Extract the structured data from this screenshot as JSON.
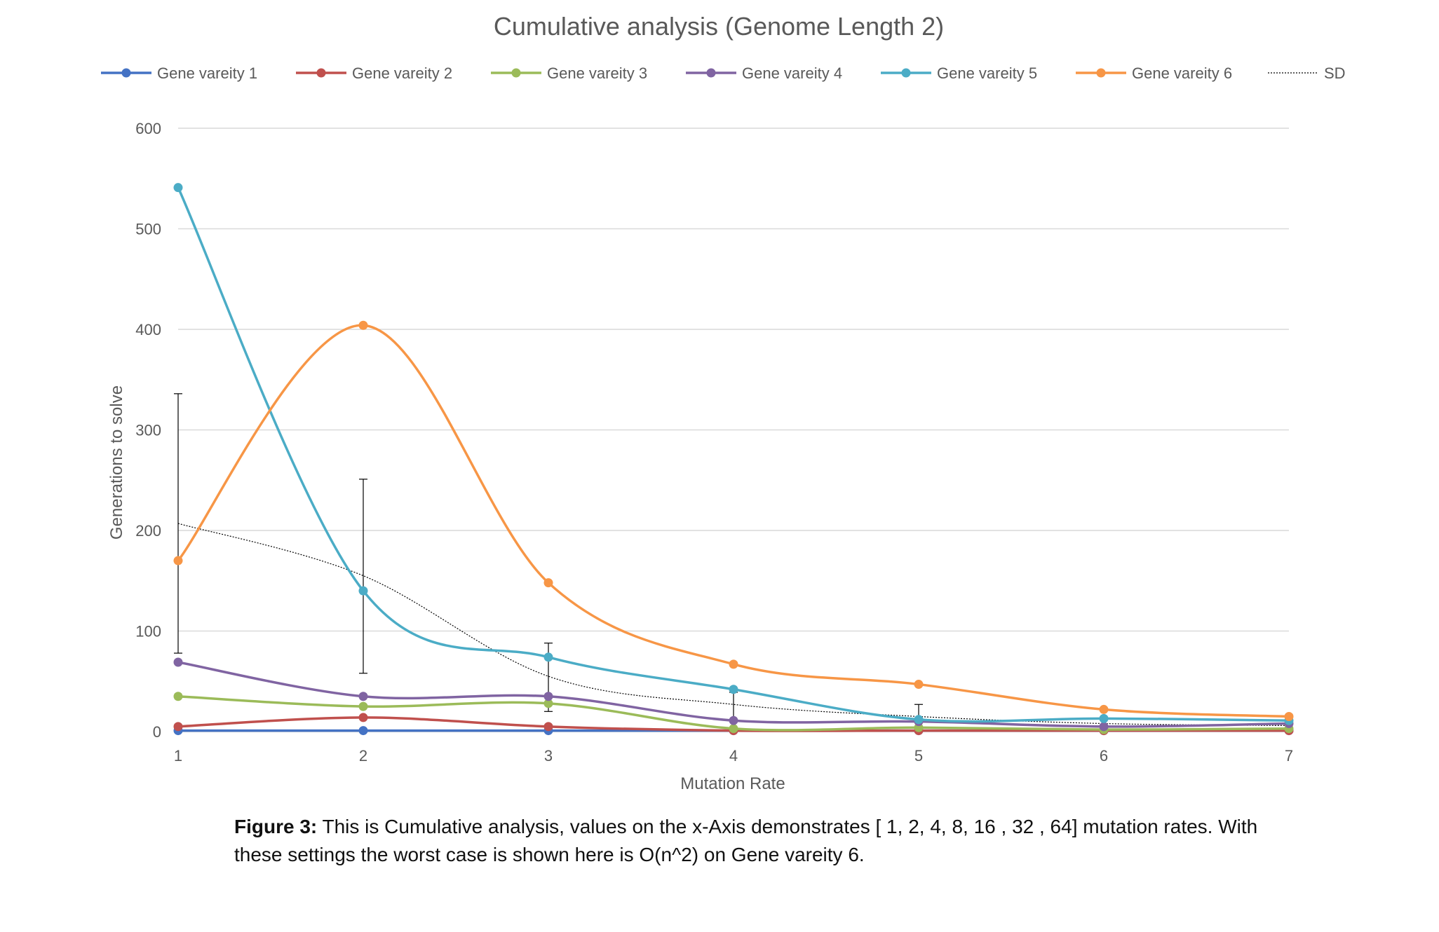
{
  "chart_data": {
    "type": "line",
    "title": "Cumulative analysis (Genome Length 2)",
    "xlabel": "Mutation Rate",
    "ylabel": "Generations to solve",
    "x": [
      1,
      2,
      3,
      4,
      5,
      6,
      7
    ],
    "x_tick_labels": [
      "1",
      "2",
      "3",
      "4",
      "5",
      "6",
      "7"
    ],
    "ylim": [
      0,
      600
    ],
    "y_ticks": [
      0,
      100,
      200,
      300,
      400,
      500,
      600
    ],
    "grid": "horizontal",
    "legend_position": "top",
    "smooth": true,
    "series": [
      {
        "name": "Gene vareity 1",
        "color": "#4472C4",
        "values": [
          1,
          1,
          1,
          1,
          1,
          1,
          1
        ]
      },
      {
        "name": "Gene vareity 2",
        "color": "#C0504D",
        "values": [
          5,
          14,
          5,
          1,
          1,
          1,
          1
        ]
      },
      {
        "name": "Gene vareity 3",
        "color": "#9BBB59",
        "values": [
          35,
          25,
          28,
          3,
          4,
          2,
          3
        ]
      },
      {
        "name": "Gene vareity 4",
        "color": "#8064A2",
        "values": [
          69,
          35,
          35,
          11,
          10,
          5,
          8
        ]
      },
      {
        "name": "Gene vareity 5",
        "color": "#4BACC6",
        "values": [
          541,
          140,
          74,
          42,
          12,
          13,
          11
        ]
      },
      {
        "name": "Gene vareity 6",
        "color": "#F79646",
        "values": [
          170,
          404,
          148,
          67,
          47,
          22,
          15
        ]
      }
    ],
    "sd": {
      "name": "SD",
      "color": "#000000",
      "values": [
        207,
        155,
        55,
        27,
        15,
        8,
        6
      ],
      "error_bars": [
        {
          "x": 1,
          "low": 78,
          "high": 336
        },
        {
          "x": 2,
          "low": 58,
          "high": 251
        },
        {
          "x": 3,
          "low": 20,
          "high": 88
        },
        {
          "x": 4,
          "low": 2,
          "high": 39
        },
        {
          "x": 5,
          "low": 5,
          "high": 27
        }
      ]
    }
  },
  "caption": {
    "lead": "Figure 3:",
    "text": "  This is Cumulative analysis, values on the x-Axis demonstrates [ 1, 2, 4, 8, 16 , 32 , 64] mutation rates. With these settings the worst case is shown here is O(n^2) on Gene vareity 6."
  }
}
